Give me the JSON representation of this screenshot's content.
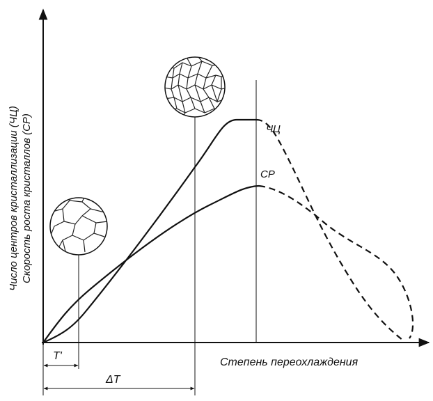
{
  "y_axis": {
    "lines": [
      "Число центров кристаллизации (ЧЦ)",
      "Скорость роста кристаллов (СР)"
    ]
  },
  "curves": {
    "nucleation": "ЧЦ",
    "growth": "СР"
  },
  "x_axis": {
    "label": "Степень переохлаждения"
  },
  "markers": {
    "t_small": "T'",
    "delta_t": "ΔT"
  }
}
